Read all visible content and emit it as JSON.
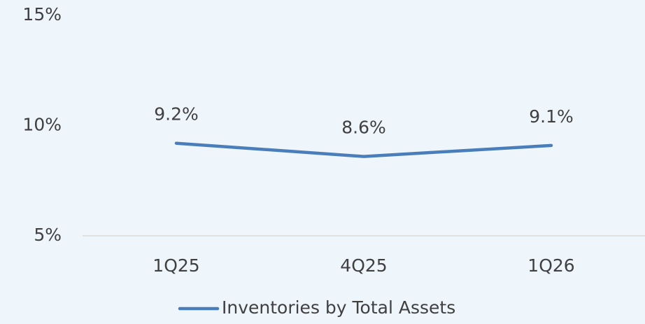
{
  "chart_data": {
    "type": "line",
    "categories": [
      "1Q25",
      "4Q25",
      "1Q26"
    ],
    "series": [
      {
        "name": "Inventories by Total Assets",
        "color": "#4a7ebb",
        "values": [
          9.2,
          8.6,
          9.1
        ],
        "value_labels": [
          "9.2%",
          "8.6%",
          "9.1%"
        ]
      }
    ],
    "ylim": [
      5,
      15
    ],
    "yticks": [
      {
        "value": 5,
        "label": "5%"
      },
      {
        "value": 10,
        "label": "10%"
      },
      {
        "value": 15,
        "label": "15%"
      }
    ],
    "grid": false,
    "legend": "bottom"
  }
}
